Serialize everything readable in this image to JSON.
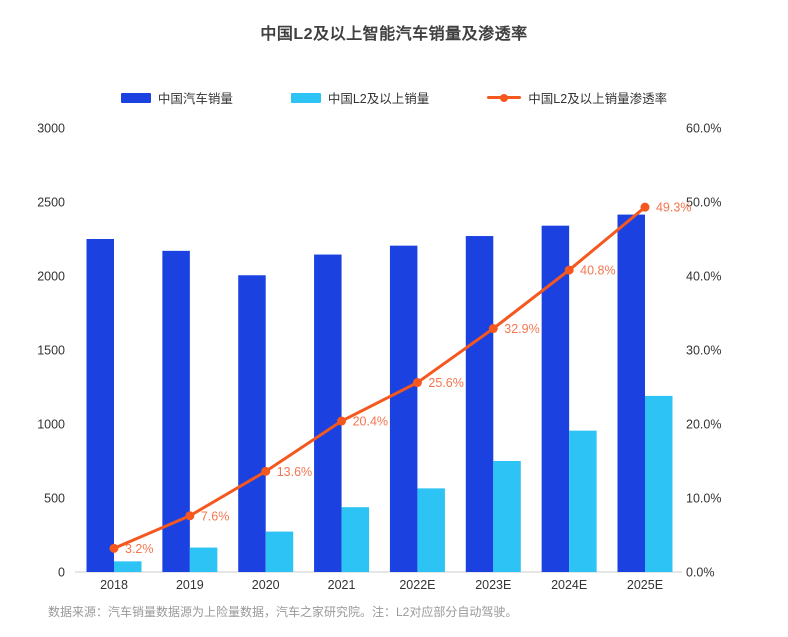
{
  "title": "中国L2及以上智能汽车销量及渗透率",
  "colors": {
    "total_sales_bar": "#1b42e0",
    "l2_sales_bar": "#2ec3f5",
    "penetration_line": "#f5581e",
    "penetration_label": "#f4764f",
    "title_text": "#404040",
    "axis_text": "#333333",
    "axis_line": "#cccccc",
    "footer_text": "#999999"
  },
  "legend": {
    "items": [
      {
        "label": "中国汽车销量",
        "marker": "bar-swatch",
        "color": "#1b42e0"
      },
      {
        "label": "中国L2及以上销量",
        "marker": "bar-swatch",
        "color": "#2ec3f5"
      },
      {
        "label": "中国L2及以上销量渗透率",
        "marker": "line-dot-swatch",
        "color": "#f5581e"
      }
    ]
  },
  "chart_data": {
    "type": "bar",
    "combo": "dual-axis bar + line",
    "title": "中国L2及以上智能汽车销量及渗透率",
    "categories": [
      "2018",
      "2019",
      "2020",
      "2021",
      "2022E",
      "2023E",
      "2024E",
      "2025E"
    ],
    "series": [
      {
        "name": "中国汽车销量",
        "type": "bar",
        "axis": "left",
        "values": [
          2250,
          2170,
          2005,
          2145,
          2205,
          2270,
          2340,
          2415
        ]
      },
      {
        "name": "中国L2及以上销量",
        "type": "bar",
        "axis": "left",
        "values": [
          72,
          165,
          273,
          438,
          565,
          750,
          955,
          1190
        ]
      },
      {
        "name": "中国L2及以上销量渗透率",
        "type": "line",
        "axis": "right",
        "values": [
          3.2,
          7.6,
          13.6,
          20.4,
          25.6,
          32.9,
          40.8,
          49.3
        ],
        "point_labels": [
          "3.2%",
          "7.6%",
          "13.6%",
          "20.4%",
          "25.6%",
          "32.9%",
          "40.8%",
          "49.3%"
        ]
      }
    ],
    "left_axis": {
      "min": 0,
      "max": 3000,
      "step": 500,
      "tick_labels": [
        "0",
        "500",
        "1000",
        "1500",
        "2000",
        "2500",
        "3000"
      ]
    },
    "right_axis": {
      "min": 0,
      "max": 60,
      "step": 10,
      "tick_labels": [
        "0.0%",
        "10.0%",
        "20.0%",
        "30.0%",
        "40.0%",
        "50.0%",
        "60.0%"
      ]
    },
    "grid": false,
    "legend_position": "top"
  },
  "footer": {
    "note": "数据来源：汽车销量数据源为上险量数据，汽车之家研究院。注：L2对应部分自动驾驶。"
  }
}
